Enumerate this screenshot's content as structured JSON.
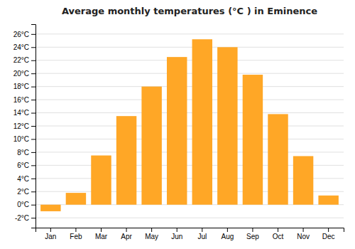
{
  "chart_data": {
    "type": "bar",
    "title": "Average monthly temperatures (°C ) in Eminence",
    "categories": [
      "Jan",
      "Feb",
      "Mar",
      "Apr",
      "May",
      "Jun",
      "Jul",
      "Aug",
      "Sep",
      "Oct",
      "Nov",
      "Dec"
    ],
    "values": [
      -1,
      1.8,
      7.5,
      13.5,
      18,
      22.5,
      25.2,
      24,
      19.8,
      13.8,
      7.4,
      1.4
    ],
    "color": "#FFA726",
    "ylim": [
      -3.5,
      27.5
    ],
    "yticks": [
      {
        "value": -2,
        "label": "-2°C"
      },
      {
        "value": 0,
        "label": "0°C"
      },
      {
        "value": 2,
        "label": "2°C"
      },
      {
        "value": 4,
        "label": "4°C"
      },
      {
        "value": 6,
        "label": "6°C"
      },
      {
        "value": 8,
        "label": "8°C"
      },
      {
        "value": 10,
        "label": "10°C"
      },
      {
        "value": 12,
        "label": "12°C"
      },
      {
        "value": 14,
        "label": "14°C"
      },
      {
        "value": 16,
        "label": "16°C"
      },
      {
        "value": 18,
        "label": "18°C"
      },
      {
        "value": 20,
        "label": "20°C"
      },
      {
        "value": 22,
        "label": "22°C"
      },
      {
        "value": 24,
        "label": "24°C"
      },
      {
        "value": 26,
        "label": "26°C"
      }
    ],
    "grid": true
  }
}
